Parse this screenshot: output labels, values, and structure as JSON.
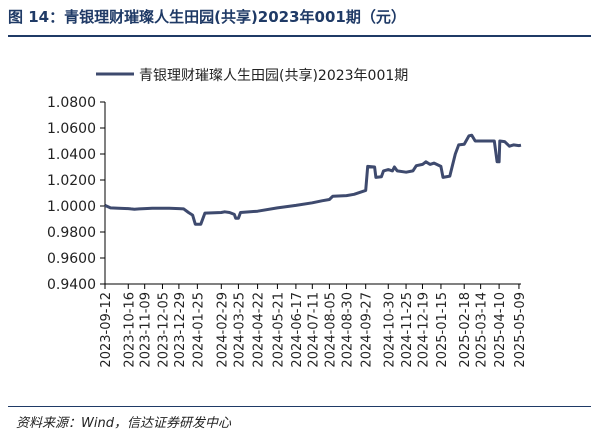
{
  "figure": {
    "title": "图 14：青银理财璀璨人生田园(共享)2023年001期（元）",
    "source": "资料来源：Wind，信达证券研发中心"
  },
  "colors": {
    "series": "#3e4a6e",
    "title": "#1f3a66"
  },
  "chart_data": {
    "type": "line",
    "title": "",
    "xlabel": "",
    "ylabel": "",
    "ylim": [
      0.94,
      1.08
    ],
    "yticks": [
      "1.0800",
      "1.0600",
      "1.0400",
      "1.0200",
      "1.0000",
      "0.9800",
      "0.9600",
      "0.9400"
    ],
    "grid": false,
    "legend_position": "top",
    "xticks": [
      "2023-09-12",
      "2023-10-16",
      "2023-11-09",
      "2023-12-05",
      "2023-12-29",
      "2024-01-25",
      "2024-02-29",
      "2024-03-25",
      "2024-04-22",
      "2024-05-21",
      "2024-06-17",
      "2024-07-11",
      "2024-08-05",
      "2024-08-30",
      "2024-09-27",
      "2024-10-30",
      "2024-11-25",
      "2024-12-19",
      "2025-01-15",
      "2025-02-18",
      "2025-03-14",
      "2025-04-10",
      "2025-05-09"
    ],
    "series": [
      {
        "name": "青银理财璀璨人生田园(共享)2023年001期",
        "points": [
          [
            "2023-09-12",
            1.0005
          ],
          [
            "2023-09-20",
            0.9985
          ],
          [
            "2023-10-02",
            0.9982
          ],
          [
            "2023-10-16",
            0.998
          ],
          [
            "2023-10-20",
            0.9978
          ],
          [
            "2023-10-25",
            0.9975
          ],
          [
            "2023-11-01",
            0.9978
          ],
          [
            "2023-11-09",
            0.998
          ],
          [
            "2023-11-20",
            0.9982
          ],
          [
            "2023-12-05",
            0.9983
          ],
          [
            "2023-12-15",
            0.9982
          ],
          [
            "2023-12-29",
            0.998
          ],
          [
            "2024-01-05",
            0.9978
          ],
          [
            "2024-01-12",
            0.995
          ],
          [
            "2024-01-18",
            0.993
          ],
          [
            "2024-01-22",
            0.986
          ],
          [
            "2024-01-30",
            0.986
          ],
          [
            "2024-02-05",
            0.9945
          ],
          [
            "2024-02-29",
            0.995
          ],
          [
            "2024-03-05",
            0.9955
          ],
          [
            "2024-03-12",
            0.995
          ],
          [
            "2024-03-19",
            0.9935
          ],
          [
            "2024-03-21",
            0.9905
          ],
          [
            "2024-03-25",
            0.9905
          ],
          [
            "2024-03-28",
            0.995
          ],
          [
            "2024-04-22",
            0.996
          ],
          [
            "2024-05-21",
            0.9985
          ],
          [
            "2024-06-17",
            1.0005
          ],
          [
            "2024-07-11",
            1.0025
          ],
          [
            "2024-07-25",
            1.004
          ],
          [
            "2024-08-05",
            1.005
          ],
          [
            "2024-08-10",
            1.0075
          ],
          [
            "2024-08-30",
            1.008
          ],
          [
            "2024-09-10",
            1.009
          ],
          [
            "2024-09-27",
            1.012
          ],
          [
            "2024-09-30",
            1.0305
          ],
          [
            "2024-10-10",
            1.03
          ],
          [
            "2024-10-12",
            1.022
          ],
          [
            "2024-10-20",
            1.0225
          ],
          [
            "2024-10-23",
            1.027
          ],
          [
            "2024-10-30",
            1.028
          ],
          [
            "2024-11-05",
            1.027
          ],
          [
            "2024-11-08",
            1.03
          ],
          [
            "2024-11-12",
            1.027
          ],
          [
            "2024-11-25",
            1.026
          ],
          [
            "2024-12-05",
            1.027
          ],
          [
            "2024-12-10",
            1.031
          ],
          [
            "2024-12-19",
            1.032
          ],
          [
            "2024-12-24",
            1.034
          ],
          [
            "2024-12-30",
            1.032
          ],
          [
            "2025-01-05",
            1.033
          ],
          [
            "2025-01-15",
            1.0305
          ],
          [
            "2025-01-18",
            1.022
          ],
          [
            "2025-01-28",
            1.023
          ],
          [
            "2025-02-05",
            1.04
          ],
          [
            "2025-02-10",
            1.047
          ],
          [
            "2025-02-18",
            1.0475
          ],
          [
            "2025-02-25",
            1.054
          ],
          [
            "2025-03-01",
            1.0545
          ],
          [
            "2025-03-06",
            1.05
          ],
          [
            "2025-03-14",
            1.05
          ],
          [
            "2025-03-25",
            1.05
          ],
          [
            "2025-04-03",
            1.05
          ],
          [
            "2025-04-07",
            1.034
          ],
          [
            "2025-04-10",
            1.034
          ],
          [
            "2025-04-11",
            1.05
          ],
          [
            "2025-04-18",
            1.0495
          ],
          [
            "2025-04-25",
            1.046
          ],
          [
            "2025-05-01",
            1.047
          ],
          [
            "2025-05-09",
            1.0465
          ],
          [
            "2025-05-12",
            1.0468
          ]
        ]
      }
    ]
  }
}
